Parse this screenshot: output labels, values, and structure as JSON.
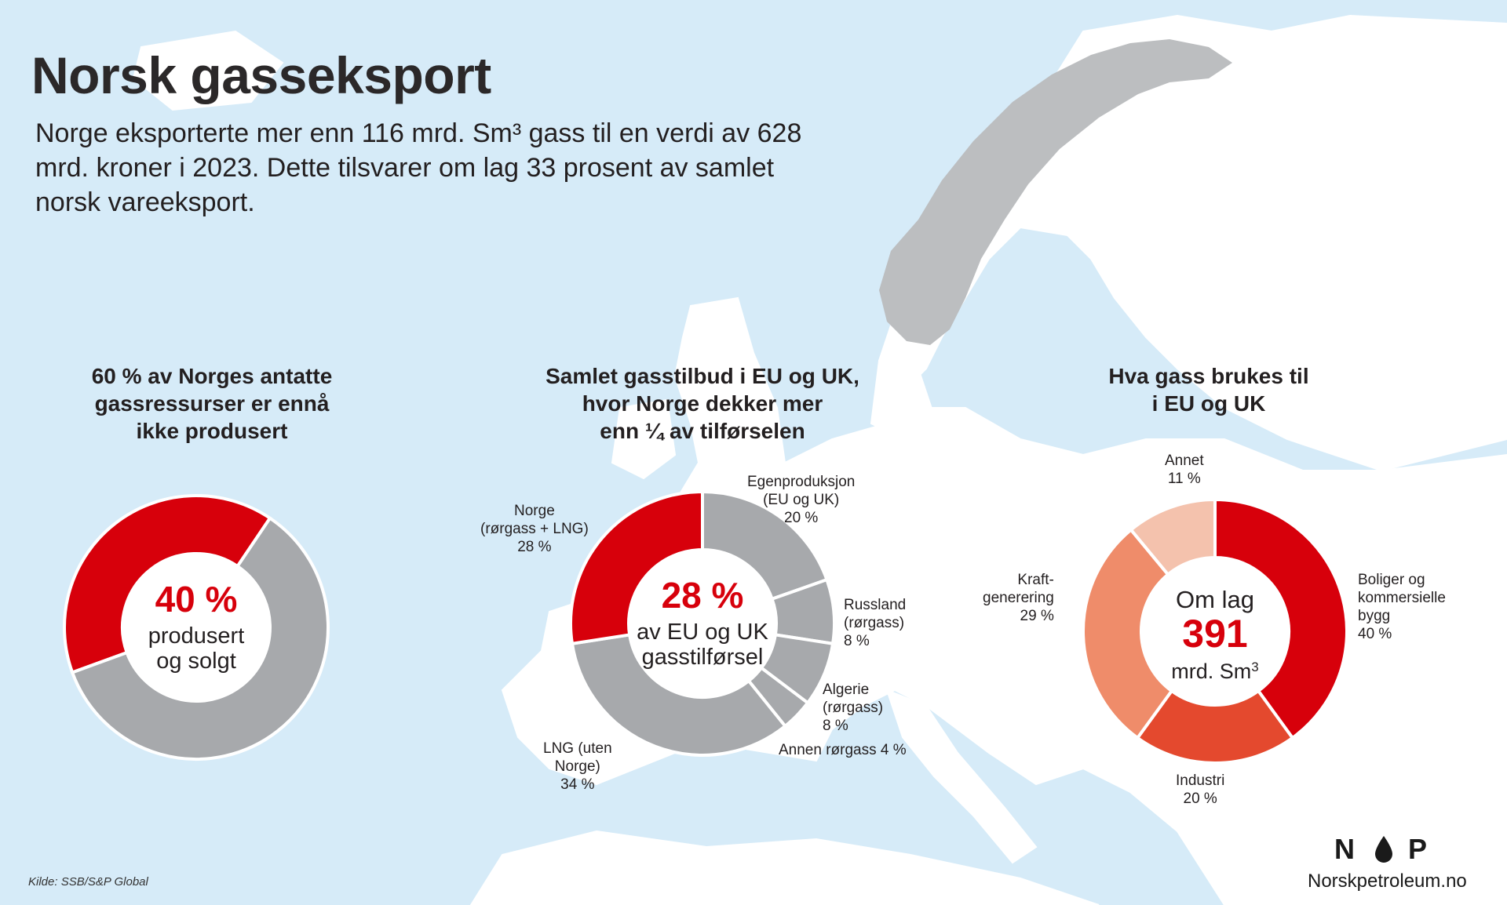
{
  "title": "Norsk gasseksport",
  "intro": "Norge eksporterte mer enn 116 mrd. Sm³ gass til en verdi av 628 mrd. kroner i 2023. Dette tilsvarer om lag 33 prosent av samlet norsk vareeksport.",
  "colors": {
    "red": "#d7000b",
    "grey": "#a7a9ac",
    "orange_red": "#e4492e",
    "salmon": "#ef8c6a",
    "light_salmon": "#f4c2ad",
    "sea": "#d6ebf8",
    "land": "#ffffff",
    "norway": "#bcbec0"
  },
  "chart_data": [
    {
      "type": "pie",
      "title": "60 % av Norges antatte\ngassressurser er ennå\nikke produsert",
      "slices": [
        {
          "label": "produsert og solgt",
          "value": 40,
          "color": "#d7000b"
        },
        {
          "label": "",
          "value": 60,
          "color": "#a7a9ac"
        }
      ],
      "center": {
        "big": "40 %",
        "line1": "produsert",
        "line2": "og solgt"
      }
    },
    {
      "type": "pie",
      "title": "Samlet gasstilbud i EU og UK,\nhvor Norge dekker mer\nenn ¼ av tilførselen",
      "slices": [
        {
          "label": "Egenproduksjon\n(EU og UK)\n20 %",
          "value": 20,
          "color": "#a7a9ac"
        },
        {
          "label": "Russland\n(rørgass)\n8 %",
          "value": 8,
          "color": "#a7a9ac"
        },
        {
          "label": "Algerie\n(rørgass)\n8 %",
          "value": 8,
          "color": "#a7a9ac"
        },
        {
          "label": "Annen rørgass 4 %",
          "value": 4,
          "color": "#a7a9ac"
        },
        {
          "label": "LNG (uten\nNorge)\n34 %",
          "value": 34,
          "color": "#a7a9ac"
        },
        {
          "label": "Norge\n(rørgass + LNG)\n28 %",
          "value": 28,
          "color": "#d7000b"
        }
      ],
      "center": {
        "big": "28 %",
        "line1": "av EU og UK",
        "line2": "gasstilførsel"
      }
    },
    {
      "type": "pie",
      "title": "Hva gass brukes til\ni EU og UK",
      "slices": [
        {
          "label": "Boliger og\nkommersielle\nbygg\n40 %",
          "value": 40,
          "color": "#d7000b"
        },
        {
          "label": "Industri\n20 %",
          "value": 20,
          "color": "#e4492e"
        },
        {
          "label": "Kraft-\ngenerering\n29 %",
          "value": 29,
          "color": "#ef8c6a"
        },
        {
          "label": "Annet\n11 %",
          "value": 11,
          "color": "#f4c2ad"
        }
      ],
      "center": {
        "line1": "Om lag",
        "big": "391",
        "line2": "mrd. Sm",
        "sup": "3"
      }
    }
  ],
  "footer": {
    "source": "Kilde: SSB/S&P Global",
    "logo_left": "N",
    "logo_right": "P",
    "site": "Norskpetroleum.no"
  }
}
